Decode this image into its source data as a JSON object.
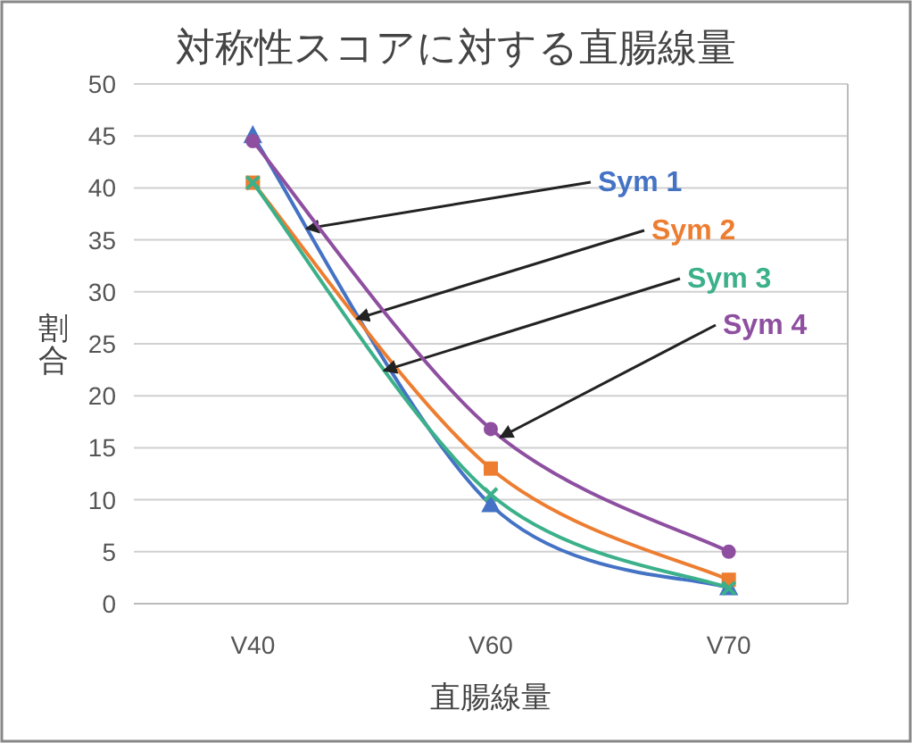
{
  "chart_data": {
    "type": "line",
    "title": "対称性スコアに対する直腸線量",
    "xlabel": "直腸線量",
    "ylabel": "割合",
    "categories": [
      "V40",
      "V60",
      "V70"
    ],
    "series": [
      {
        "name": "Sym 1",
        "color": "#4472c4",
        "marker": "triangle",
        "values": [
          45,
          9.5,
          1.5
        ]
      },
      {
        "name": "Sym 2",
        "color": "#ed7d31",
        "marker": "square",
        "values": [
          40.5,
          13,
          2.3
        ]
      },
      {
        "name": "Sym 3",
        "color": "#3cb08a",
        "marker": "cross",
        "values": [
          40.5,
          10.5,
          1.5
        ]
      },
      {
        "name": "Sym 4",
        "color": "#8e4fa0",
        "marker": "circle",
        "values": [
          44.5,
          16.8,
          5
        ]
      }
    ],
    "ylim": [
      0,
      50
    ],
    "yticks": [
      0,
      5,
      10,
      15,
      20,
      25,
      30,
      35,
      40,
      45,
      50
    ],
    "grid": "y",
    "legend": false
  }
}
